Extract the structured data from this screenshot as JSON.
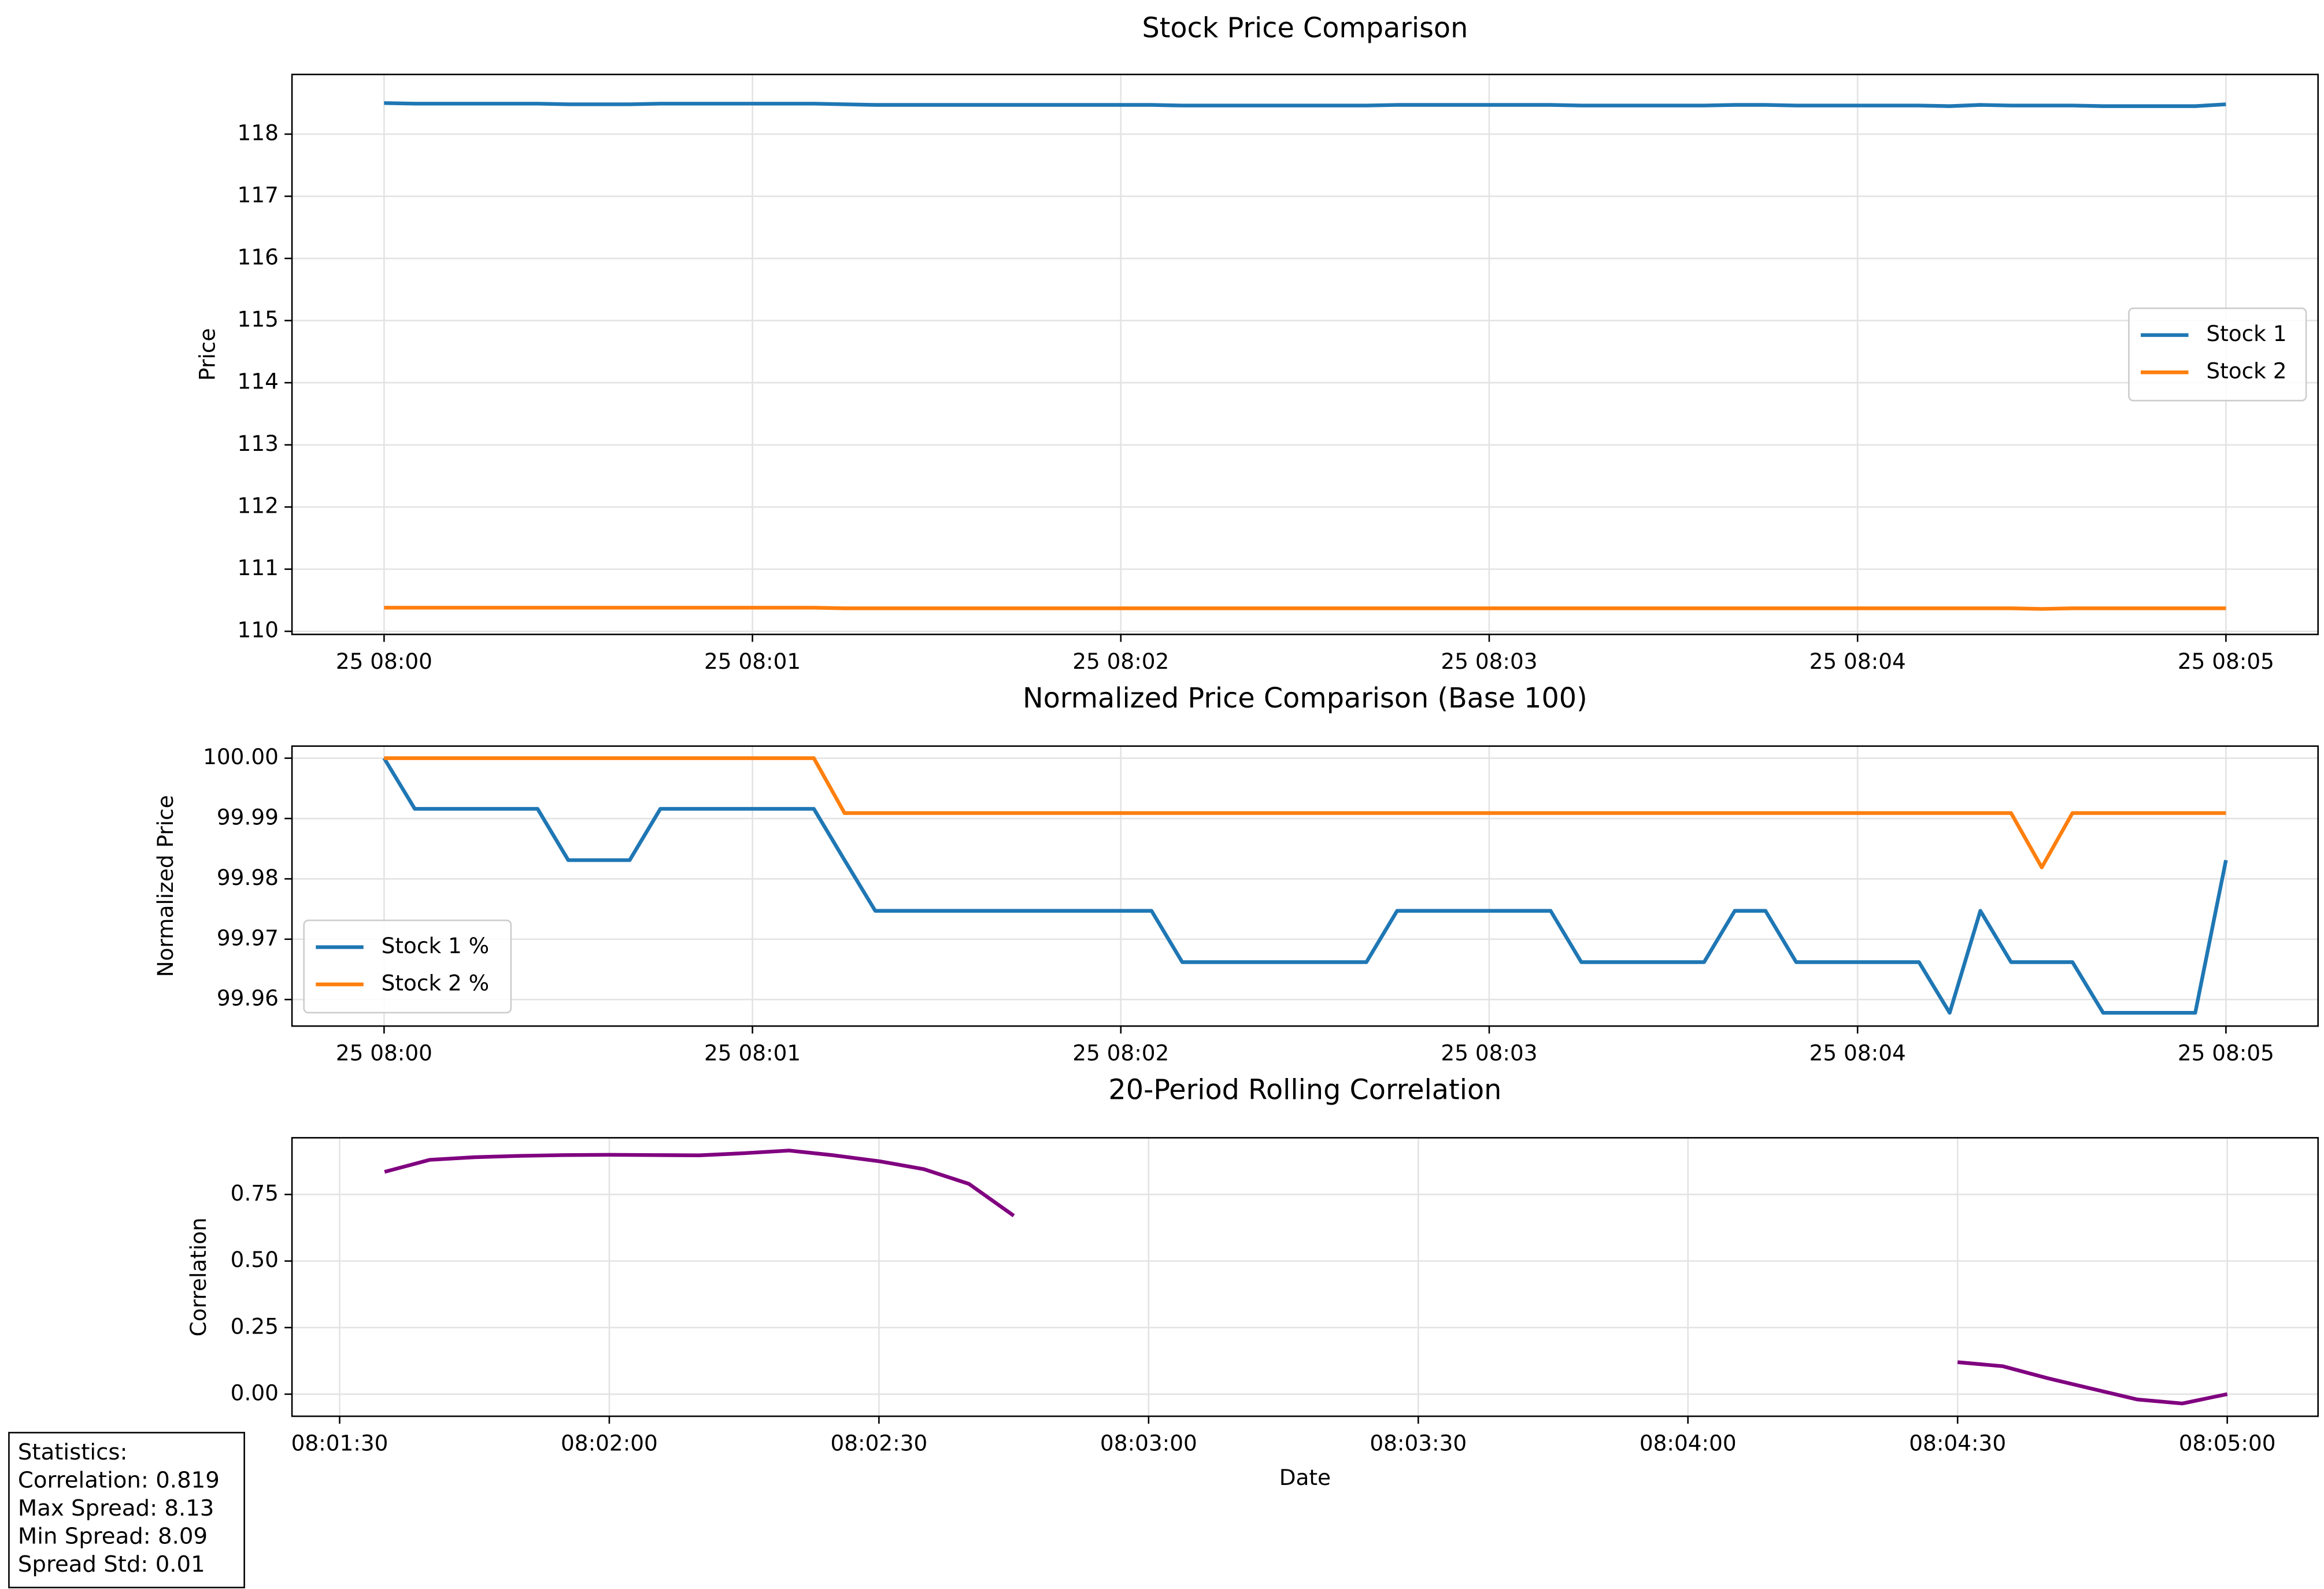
{
  "chart_data": [
    {
      "type": "line",
      "title": "Stock Price Comparison",
      "ylabel": "Price",
      "x": [
        "08:00:00",
        "08:00:05",
        "08:00:10",
        "08:00:15",
        "08:00:20",
        "08:00:25",
        "08:00:30",
        "08:00:35",
        "08:00:40",
        "08:00:45",
        "08:00:50",
        "08:00:55",
        "08:01:00",
        "08:01:05",
        "08:01:10",
        "08:01:15",
        "08:01:20",
        "08:01:25",
        "08:01:30",
        "08:01:35",
        "08:01:40",
        "08:01:45",
        "08:01:50",
        "08:01:55",
        "08:02:00",
        "08:02:05",
        "08:02:10",
        "08:02:15",
        "08:02:20",
        "08:02:25",
        "08:02:30",
        "08:02:35",
        "08:02:40",
        "08:02:45",
        "08:02:50",
        "08:02:55",
        "08:03:00",
        "08:03:05",
        "08:03:10",
        "08:03:15",
        "08:03:20",
        "08:03:25",
        "08:03:30",
        "08:03:35",
        "08:03:40",
        "08:03:45",
        "08:03:50",
        "08:03:55",
        "08:04:00",
        "08:04:05",
        "08:04:10",
        "08:04:15",
        "08:04:20",
        "08:04:25",
        "08:04:30",
        "08:04:35",
        "08:04:40",
        "08:04:45",
        "08:04:50",
        "08:04:55",
        "08:05:00"
      ],
      "series": [
        {
          "name": "Stock 1",
          "color": "#1f77b4",
          "values": [
            118.5,
            118.49,
            118.49,
            118.49,
            118.49,
            118.49,
            118.48,
            118.48,
            118.48,
            118.49,
            118.49,
            118.49,
            118.49,
            118.49,
            118.49,
            118.48,
            118.47,
            118.47,
            118.47,
            118.47,
            118.47,
            118.47,
            118.47,
            118.47,
            118.47,
            118.47,
            118.46,
            118.46,
            118.46,
            118.46,
            118.46,
            118.46,
            118.46,
            118.47,
            118.47,
            118.47,
            118.47,
            118.47,
            118.47,
            118.46,
            118.46,
            118.46,
            118.46,
            118.46,
            118.47,
            118.47,
            118.46,
            118.46,
            118.46,
            118.46,
            118.46,
            118.45,
            118.47,
            118.46,
            118.46,
            118.46,
            118.45,
            118.45,
            118.45,
            118.45,
            118.48
          ]
        },
        {
          "name": "Stock 2",
          "color": "#ff7f0e",
          "values": [
            110.38,
            110.38,
            110.38,
            110.38,
            110.38,
            110.38,
            110.38,
            110.38,
            110.38,
            110.38,
            110.38,
            110.38,
            110.38,
            110.38,
            110.38,
            110.37,
            110.37,
            110.37,
            110.37,
            110.37,
            110.37,
            110.37,
            110.37,
            110.37,
            110.37,
            110.37,
            110.37,
            110.37,
            110.37,
            110.37,
            110.37,
            110.37,
            110.37,
            110.37,
            110.37,
            110.37,
            110.37,
            110.37,
            110.37,
            110.37,
            110.37,
            110.37,
            110.37,
            110.37,
            110.37,
            110.37,
            110.37,
            110.37,
            110.37,
            110.37,
            110.37,
            110.37,
            110.37,
            110.37,
            110.36,
            110.37,
            110.37,
            110.37,
            110.37,
            110.37,
            110.37
          ]
        }
      ],
      "xlim": [
        "07:59:45",
        "08:05:15"
      ],
      "xticks": [
        {
          "value": "08:00:00",
          "label": "25 08:00"
        },
        {
          "value": "08:01:00",
          "label": "25 08:01"
        },
        {
          "value": "08:02:00",
          "label": "25 08:02"
        },
        {
          "value": "08:03:00",
          "label": "25 08:03"
        },
        {
          "value": "08:04:00",
          "label": "25 08:04"
        },
        {
          "value": "08:05:00",
          "label": "25 08:05"
        }
      ],
      "ylim": [
        109.95,
        118.96
      ],
      "yticks": [
        110,
        111,
        112,
        113,
        114,
        115,
        116,
        117,
        118
      ],
      "grid": true,
      "legend": "center right"
    },
    {
      "type": "line",
      "title": "Normalized Price Comparison (Base 100)",
      "ylabel": "Normalized Price",
      "x": [
        "08:00:00",
        "08:00:05",
        "08:00:10",
        "08:00:15",
        "08:00:20",
        "08:00:25",
        "08:00:30",
        "08:00:35",
        "08:00:40",
        "08:00:45",
        "08:00:50",
        "08:00:55",
        "08:01:00",
        "08:01:05",
        "08:01:10",
        "08:01:15",
        "08:01:20",
        "08:01:25",
        "08:01:30",
        "08:01:35",
        "08:01:40",
        "08:01:45",
        "08:01:50",
        "08:01:55",
        "08:02:00",
        "08:02:05",
        "08:02:10",
        "08:02:15",
        "08:02:20",
        "08:02:25",
        "08:02:30",
        "08:02:35",
        "08:02:40",
        "08:02:45",
        "08:02:50",
        "08:02:55",
        "08:03:00",
        "08:03:05",
        "08:03:10",
        "08:03:15",
        "08:03:20",
        "08:03:25",
        "08:03:30",
        "08:03:35",
        "08:03:40",
        "08:03:45",
        "08:03:50",
        "08:03:55",
        "08:04:00",
        "08:04:05",
        "08:04:10",
        "08:04:15",
        "08:04:20",
        "08:04:25",
        "08:04:30",
        "08:04:35",
        "08:04:40",
        "08:04:45",
        "08:04:50",
        "08:04:55",
        "08:05:00"
      ],
      "series": [
        {
          "name": "Stock 1 %",
          "color": "#1f77b4",
          "values": [
            100,
            99.9916,
            99.9916,
            99.9916,
            99.9916,
            99.9916,
            99.9831,
            99.9831,
            99.9831,
            99.9916,
            99.9916,
            99.9916,
            99.9916,
            99.9916,
            99.9916,
            99.9831,
            99.9747,
            99.9747,
            99.9747,
            99.9747,
            99.9747,
            99.9747,
            99.9747,
            99.9747,
            99.9747,
            99.9747,
            99.9662,
            99.9662,
            99.9662,
            99.9662,
            99.9662,
            99.9662,
            99.9662,
            99.9747,
            99.9747,
            99.9747,
            99.9747,
            99.9747,
            99.9747,
            99.9662,
            99.9662,
            99.9662,
            99.9662,
            99.9662,
            99.9747,
            99.9747,
            99.9662,
            99.9662,
            99.9662,
            99.9662,
            99.9662,
            99.9578,
            99.9747,
            99.9662,
            99.9662,
            99.9662,
            99.9578,
            99.9578,
            99.9578,
            99.9578,
            99.9831
          ]
        },
        {
          "name": "Stock 2 %",
          "color": "#ff7f0e",
          "values": [
            100,
            100,
            100,
            100,
            100,
            100,
            100,
            100,
            100,
            100,
            100,
            100,
            100,
            100,
            100,
            99.9909,
            99.9909,
            99.9909,
            99.9909,
            99.9909,
            99.9909,
            99.9909,
            99.9909,
            99.9909,
            99.9909,
            99.9909,
            99.9909,
            99.9909,
            99.9909,
            99.9909,
            99.9909,
            99.9909,
            99.9909,
            99.9909,
            99.9909,
            99.9909,
            99.9909,
            99.9909,
            99.9909,
            99.9909,
            99.9909,
            99.9909,
            99.9909,
            99.9909,
            99.9909,
            99.9909,
            99.9909,
            99.9909,
            99.9909,
            99.9909,
            99.9909,
            99.9909,
            99.9909,
            99.9909,
            99.9819,
            99.9909,
            99.9909,
            99.9909,
            99.9909,
            99.9909,
            99.9909
          ]
        }
      ],
      "xlim": [
        "07:59:45",
        "08:05:15"
      ],
      "xticks": [
        {
          "value": "08:00:00",
          "label": "25 08:00"
        },
        {
          "value": "08:01:00",
          "label": "25 08:01"
        },
        {
          "value": "08:02:00",
          "label": "25 08:02"
        },
        {
          "value": "08:03:00",
          "label": "25 08:03"
        },
        {
          "value": "08:04:00",
          "label": "25 08:04"
        },
        {
          "value": "08:05:00",
          "label": "25 08:05"
        }
      ],
      "ylim": [
        99.9556,
        100.002
      ],
      "yticks": [
        99.96,
        99.97,
        99.98,
        99.99,
        {
          "value": 100,
          "label": "100.00"
        }
      ],
      "grid": true,
      "legend": "lower left"
    },
    {
      "type": "line",
      "title": "20-Period Rolling Correlation",
      "xlabel": "Date",
      "ylabel": "Correlation",
      "x": [
        "08:01:35",
        "08:01:40",
        "08:01:45",
        "08:01:50",
        "08:01:55",
        "08:02:00",
        "08:02:05",
        "08:02:10",
        "08:02:15",
        "08:02:20",
        "08:02:25",
        "08:02:30",
        "08:02:35",
        "08:02:40",
        "08:02:45",
        "08:02:50",
        "08:02:55",
        "08:03:00",
        "08:03:05",
        "08:03:10",
        "08:03:15",
        "08:03:20",
        "08:03:25",
        "08:03:30",
        "08:03:35",
        "08:03:40",
        "08:03:45",
        "08:03:50",
        "08:03:55",
        "08:04:00",
        "08:04:05",
        "08:04:10",
        "08:04:15",
        "08:04:20",
        "08:04:25",
        "08:04:30",
        "08:04:35",
        "08:04:40",
        "08:04:45",
        "08:04:50",
        "08:04:55",
        "08:05:00"
      ],
      "series": [
        {
          "name": "Correlation",
          "color": "#800080",
          "values": [
            0.835,
            0.88,
            0.89,
            0.895,
            0.898,
            0.899,
            0.898,
            0.897,
            0.905,
            0.915,
            0.897,
            0.875,
            0.845,
            0.79,
            0.67,
            null,
            null,
            null,
            null,
            null,
            null,
            null,
            null,
            null,
            null,
            null,
            null,
            null,
            null,
            null,
            null,
            null,
            null,
            null,
            null,
            0.12,
            0.105,
            0.06,
            0.02,
            -0.02,
            -0.035,
            0.0
          ]
        }
      ],
      "xlim": [
        "08:01:24.7",
        "08:05:10.1"
      ],
      "xticks": [
        "08:01:30",
        "08:02:00",
        "08:02:30",
        "08:03:00",
        "08:03:30",
        "08:04:00",
        "08:04:30",
        "08:05:00"
      ],
      "ylim": [
        -0.083,
        0.963
      ],
      "yticks": [
        {
          "value": 0,
          "label": "0.00"
        },
        0.25,
        {
          "value": 0.5,
          "label": "0.50"
        },
        0.75
      ],
      "grid": true
    }
  ],
  "statistics": [
    "Statistics:",
    "Correlation: 0.819",
    "Max Spread: 8.13",
    "Min Spread: 8.09",
    "Spread Std: 0.01"
  ]
}
